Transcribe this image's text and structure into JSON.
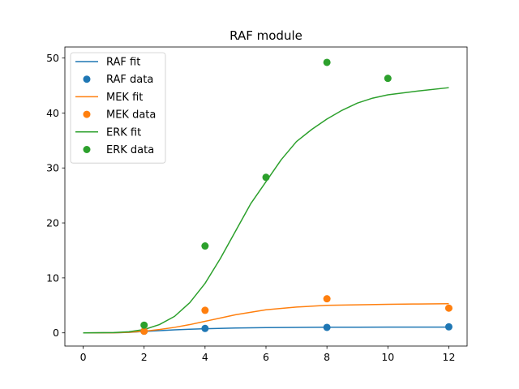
{
  "chart_data": {
    "type": "line",
    "title": "RAF module",
    "xlabel": "",
    "ylabel": "",
    "xlim": [
      -0.6,
      12.6
    ],
    "ylim": [
      -2.4,
      52.0
    ],
    "xticks": [
      0,
      2,
      4,
      6,
      8,
      10,
      12
    ],
    "yticks": [
      0,
      10,
      20,
      30,
      40,
      50
    ],
    "grid": false,
    "legend_position": "top-left",
    "series": [
      {
        "name": "RAF fit",
        "kind": "line",
        "color": "#1f77b4",
        "x": [
          0,
          1,
          1.5,
          2,
          2.5,
          3,
          3.5,
          4,
          5,
          6,
          7,
          8,
          9,
          10,
          11,
          12
        ],
        "y": [
          0,
          0.02,
          0.08,
          0.25,
          0.4,
          0.55,
          0.65,
          0.75,
          0.88,
          0.95,
          1.0,
          1.02,
          1.03,
          1.04,
          1.05,
          1.05
        ]
      },
      {
        "name": "RAF data",
        "kind": "scatter",
        "color": "#1f77b4",
        "x": [
          2,
          4,
          8,
          12
        ],
        "y": [
          0.3,
          0.8,
          1.0,
          1.1
        ]
      },
      {
        "name": "MEK fit",
        "kind": "line",
        "color": "#ff7f0e",
        "x": [
          0,
          1,
          1.5,
          2,
          2.5,
          3,
          3.5,
          4,
          5,
          6,
          7,
          8,
          9,
          10,
          11,
          12
        ],
        "y": [
          0,
          0.02,
          0.1,
          0.3,
          0.6,
          1.0,
          1.5,
          2.1,
          3.3,
          4.2,
          4.7,
          5.0,
          5.1,
          5.2,
          5.25,
          5.3
        ]
      },
      {
        "name": "MEK data",
        "kind": "scatter",
        "color": "#ff7f0e",
        "x": [
          2,
          4,
          8,
          12
        ],
        "y": [
          0.3,
          4.1,
          6.2,
          4.5
        ]
      },
      {
        "name": "ERK fit",
        "kind": "line",
        "color": "#2ca02c",
        "x": [
          0,
          1,
          1.5,
          2,
          2.5,
          3,
          3.5,
          4,
          4.5,
          5,
          5.5,
          6,
          6.5,
          7,
          7.5,
          8,
          8.5,
          9,
          9.5,
          10,
          11,
          12
        ],
        "y": [
          0,
          0.05,
          0.2,
          0.6,
          1.5,
          3.0,
          5.5,
          9.0,
          13.5,
          18.5,
          23.5,
          27.5,
          31.5,
          34.8,
          37.0,
          38.9,
          40.5,
          41.8,
          42.7,
          43.3,
          44.0,
          44.6
        ]
      },
      {
        "name": "ERK data",
        "kind": "scatter",
        "color": "#2ca02c",
        "x": [
          2,
          4,
          6,
          8,
          10
        ],
        "y": [
          1.4,
          15.8,
          28.3,
          49.2,
          46.3
        ]
      }
    ]
  }
}
